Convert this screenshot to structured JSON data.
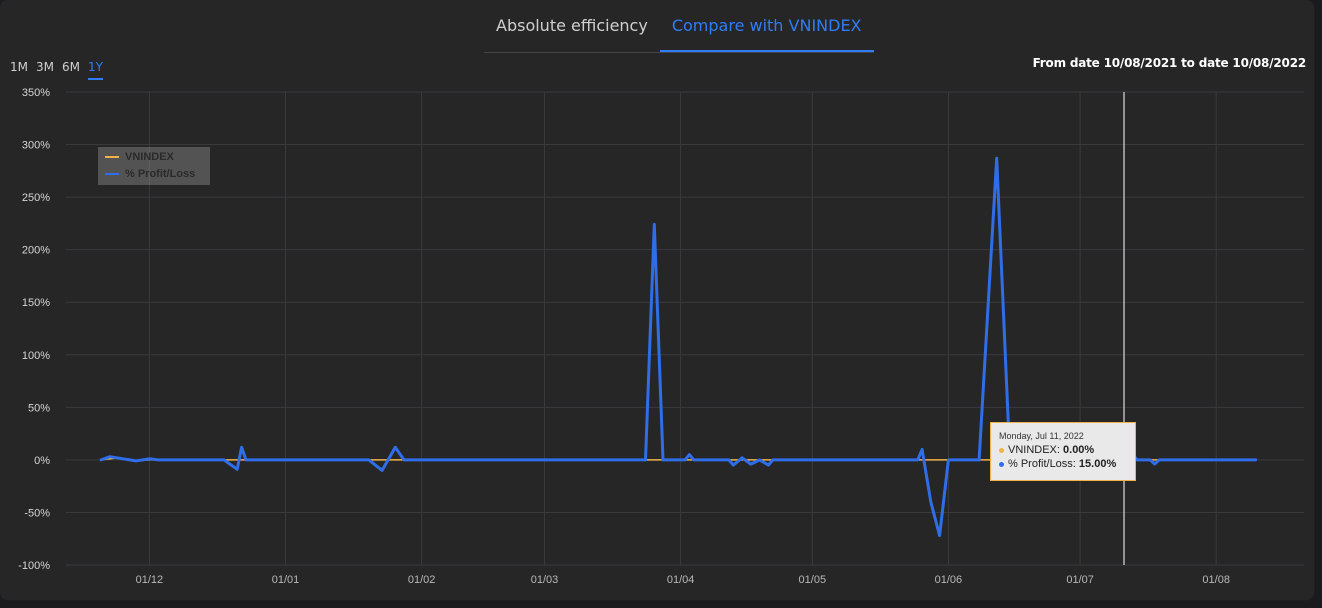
{
  "tabs": [
    {
      "label": "Absolute efficiency",
      "active": false
    },
    {
      "label": "Compare with VNINDEX",
      "active": true
    }
  ],
  "ranges": [
    {
      "label": "1M",
      "active": false
    },
    {
      "label": "3M",
      "active": false
    },
    {
      "label": "6M",
      "active": false
    },
    {
      "label": "1Y",
      "active": true
    }
  ],
  "date_range_text": "From date 10/08/2021 to date 10/08/2022",
  "colors": {
    "accent": "#2f7df6",
    "vnindex": "#f2b24a",
    "profit": "#2f6ee8",
    "crosshair": "#ffffff"
  },
  "tooltip": {
    "date": "Monday, Jul 11, 2022",
    "vnindex_label": "VNINDEX: ",
    "vnindex_value": "0.00%",
    "profit_label": "% Profit/Loss: ",
    "profit_value": "15.00%"
  },
  "chart_data": {
    "type": "line",
    "title": "",
    "xlabel": "",
    "ylabel": "",
    "ylim": [
      -100,
      350
    ],
    "y_ticks": [
      "350%",
      "300%",
      "250%",
      "200%",
      "150%",
      "100%",
      "50%",
      "0%",
      "-50%",
      "-100%"
    ],
    "x_ticks": [
      "01/12",
      "01/01",
      "01/02",
      "01/03",
      "01/04",
      "01/05",
      "01/06",
      "01/07",
      "01/08"
    ],
    "grid": true,
    "legend_position": "top-left",
    "crosshair_date": "2022-07-11",
    "series": [
      {
        "name": "VNINDEX",
        "points": [
          [
            "2021-11-20",
            0
          ],
          [
            "2021-11-24",
            2
          ],
          [
            "2021-11-28",
            -1
          ],
          [
            "2021-12-01",
            0
          ],
          [
            "2022-08-10",
            0
          ]
        ]
      },
      {
        "name": "% Profit/Loss",
        "points": [
          [
            "2021-11-20",
            0
          ],
          [
            "2021-11-22",
            3
          ],
          [
            "2021-11-25",
            1
          ],
          [
            "2021-11-28",
            -1
          ],
          [
            "2021-12-01",
            1
          ],
          [
            "2021-12-03",
            0
          ],
          [
            "2021-12-18",
            0
          ],
          [
            "2021-12-21",
            -9
          ],
          [
            "2021-12-22",
            12
          ],
          [
            "2021-12-23",
            0
          ],
          [
            "2022-01-20",
            0
          ],
          [
            "2022-01-23",
            -10
          ],
          [
            "2022-01-26",
            12
          ],
          [
            "2022-01-28",
            0
          ],
          [
            "2022-03-24",
            0
          ],
          [
            "2022-03-26",
            224
          ],
          [
            "2022-03-28",
            0
          ],
          [
            "2022-04-02",
            0
          ],
          [
            "2022-04-03",
            5
          ],
          [
            "2022-04-04",
            0
          ],
          [
            "2022-04-12",
            0
          ],
          [
            "2022-04-13",
            -5
          ],
          [
            "2022-04-15",
            2
          ],
          [
            "2022-04-17",
            -4
          ],
          [
            "2022-04-19",
            0
          ],
          [
            "2022-04-21",
            -5
          ],
          [
            "2022-04-22",
            0
          ],
          [
            "2022-05-25",
            0
          ],
          [
            "2022-05-26",
            10
          ],
          [
            "2022-05-28",
            -40
          ],
          [
            "2022-05-30",
            -72
          ],
          [
            "2022-06-01",
            0
          ],
          [
            "2022-06-08",
            0
          ],
          [
            "2022-06-12",
            287
          ],
          [
            "2022-06-15",
            0
          ],
          [
            "2022-07-08",
            0
          ],
          [
            "2022-07-09",
            -4
          ],
          [
            "2022-07-11",
            15
          ],
          [
            "2022-07-12",
            -6
          ],
          [
            "2022-07-13",
            5
          ],
          [
            "2022-07-14",
            0
          ],
          [
            "2022-07-17",
            0
          ],
          [
            "2022-07-18",
            -4
          ],
          [
            "2022-07-19",
            0
          ],
          [
            "2022-08-10",
            0
          ]
        ]
      }
    ]
  }
}
